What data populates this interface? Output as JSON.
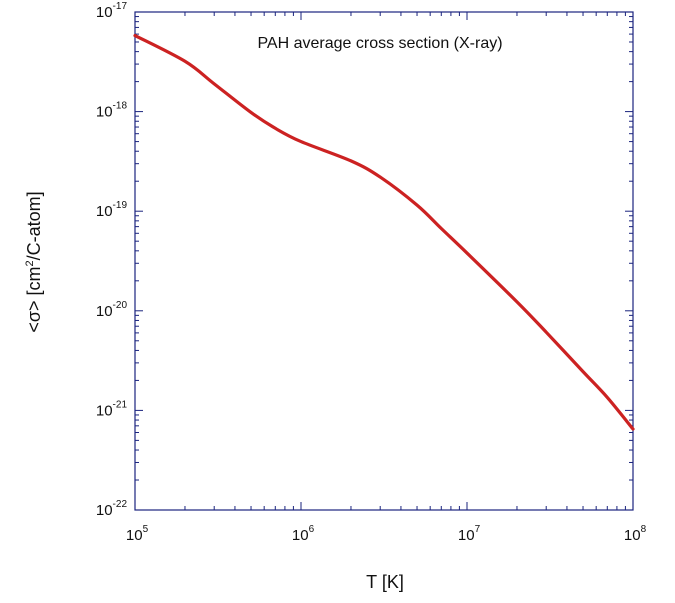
{
  "chart_data": {
    "type": "line",
    "title": "PAH average cross section (X-ray)",
    "xlabel": {
      "prefix": "T [K]",
      "sup": "",
      "suffix": ""
    },
    "ylabel": {
      "prefix": "<σ> [cm",
      "sup": "2",
      "suffix": "/C-atom]"
    },
    "xscale": "log",
    "yscale": "log",
    "xlim": [
      100000,
      100000000
    ],
    "ylim": [
      1e-22,
      1e-17
    ],
    "x_ticks": [
      {
        "base": "10",
        "exp": "5",
        "value": 100000
      },
      {
        "base": "10",
        "exp": "6",
        "value": 1000000
      },
      {
        "base": "10",
        "exp": "7",
        "value": 10000000
      },
      {
        "base": "10",
        "exp": "8",
        "value": 100000000
      }
    ],
    "y_ticks": [
      {
        "base": "10",
        "exp": "-22",
        "value": 1e-22
      },
      {
        "base": "10",
        "exp": "-21",
        "value": 1e-21
      },
      {
        "base": "10",
        "exp": "-20",
        "value": 1e-20
      },
      {
        "base": "10",
        "exp": "-19",
        "value": 1e-19
      },
      {
        "base": "10",
        "exp": "-18",
        "value": 1e-18
      },
      {
        "base": "10",
        "exp": "-17",
        "value": 1e-17
      }
    ],
    "grid": false,
    "series": [
      {
        "color": "#cc2222",
        "x": [
          100000,
          200000,
          300000,
          500000,
          700000,
          1000000,
          2000000,
          3000000,
          5000000,
          7000000,
          10000000,
          20000000,
          30000000,
          50000000,
          70000000,
          100000000
        ],
        "y": [
          5.8e-18,
          3.2e-18,
          1.9e-18,
          9.8e-19,
          6.8e-19,
          5e-19,
          3.2e-19,
          2.2e-19,
          1.15e-19,
          6.7e-20,
          3.8e-20,
          1.23e-20,
          6.1e-21,
          2.45e-21,
          1.35e-21,
          6.5e-22
        ]
      }
    ]
  },
  "colors": {
    "frame": "#1a237e",
    "series": "#cc2222"
  }
}
